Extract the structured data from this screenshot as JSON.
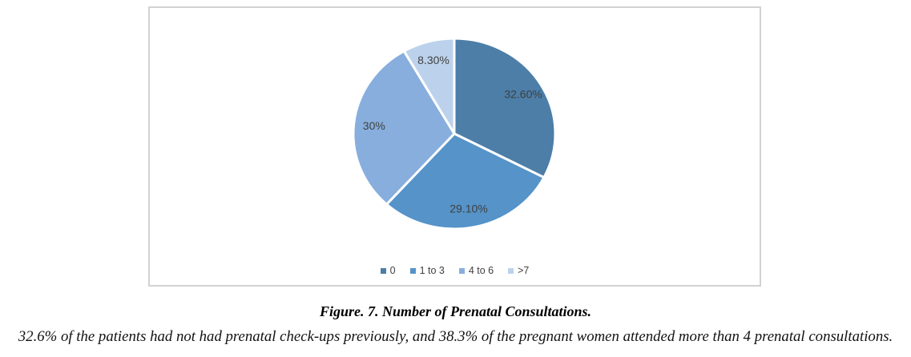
{
  "caption": "Figure. 7. Number of Prenatal Consultations.",
  "description": "32.6% of the patients had not had prenatal check-ups previously, and 38.3% of the pregnant women attended more than 4 prenatal consultations.",
  "chart_data": {
    "type": "pie",
    "title": "Number of Prenatal Consultations",
    "categories": [
      "0",
      "1 to 3",
      "4 to 6",
      ">7"
    ],
    "values": [
      32.6,
      29.1,
      30,
      8.3
    ],
    "data_labels": [
      "32.60%",
      "29.10%",
      "30%",
      "8.30%"
    ],
    "colors": [
      "#4c7ea8",
      "#5593c9",
      "#87aedd",
      "#bcd2ec"
    ],
    "start_angle_deg": 0,
    "direction": "clockwise",
    "legend_position": "bottom",
    "label_color": "#404040",
    "slice_border_color": "#ffffff"
  }
}
